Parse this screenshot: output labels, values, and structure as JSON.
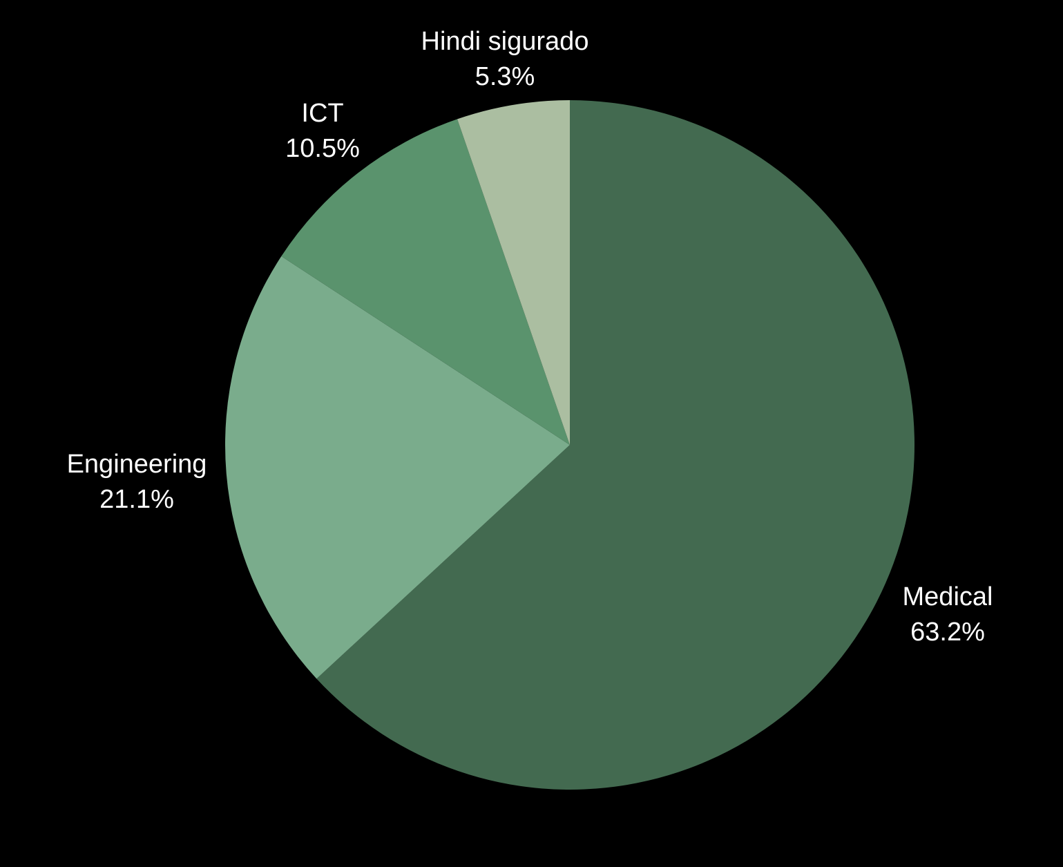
{
  "chart_data": {
    "type": "pie",
    "title": "",
    "start_angle_deg": 0,
    "direction": "clockwise",
    "slices": [
      {
        "label": "Medical",
        "value": 63.2,
        "value_text": "63.2%",
        "color": "#436a50"
      },
      {
        "label": "Engineering",
        "value": 21.1,
        "value_text": "21.1%",
        "color": "#7aac8c"
      },
      {
        "label": "ICT",
        "value": 10.5,
        "value_text": "10.5%",
        "color": "#5a936d"
      },
      {
        "label": "Hindi sigurado",
        "value": 5.3,
        "value_text": "5.3%",
        "color": "#abbea1"
      }
    ],
    "background": "#000000",
    "label_color": "#ffffff"
  }
}
